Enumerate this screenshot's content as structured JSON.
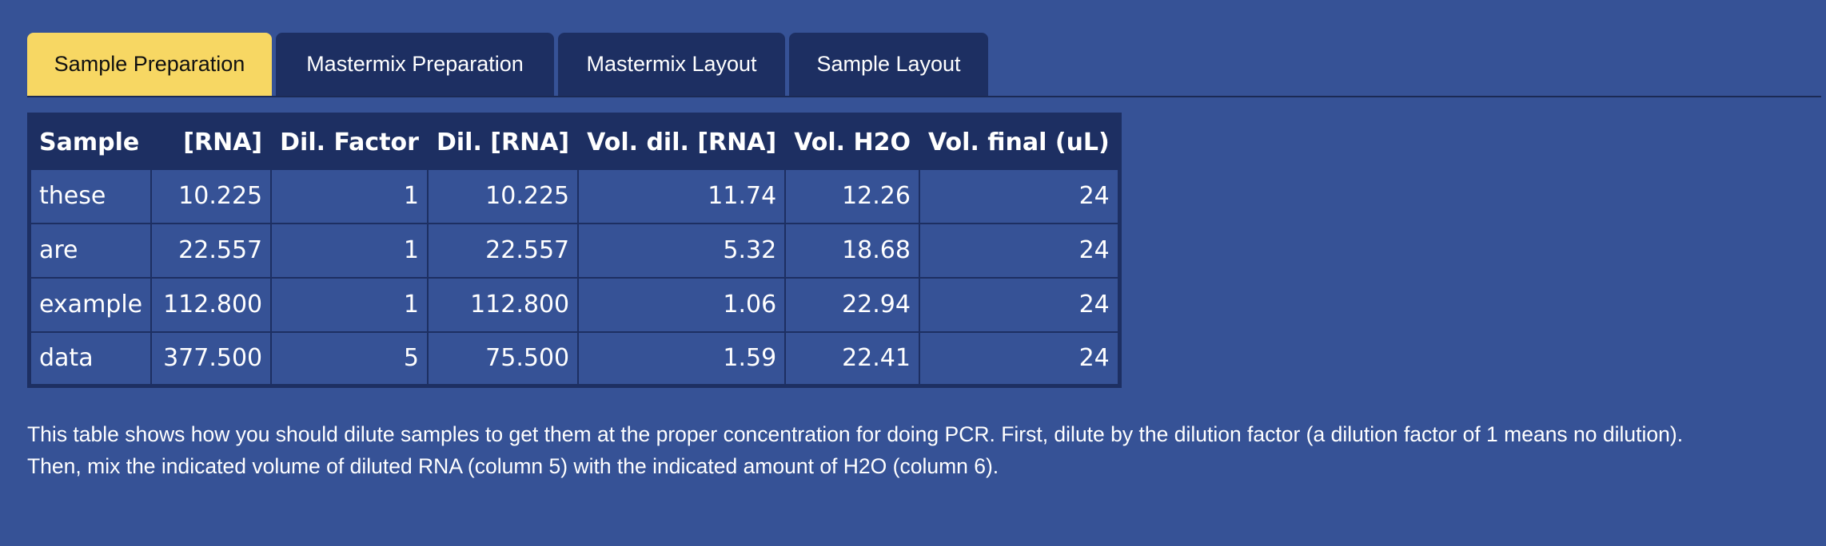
{
  "tabs": [
    {
      "label": "Sample Preparation",
      "active": true
    },
    {
      "label": "Mastermix Preparation",
      "active": false
    },
    {
      "label": "Mastermix Layout",
      "active": false
    },
    {
      "label": "Sample Layout",
      "active": false
    }
  ],
  "table": {
    "headers": [
      "Sample",
      "[RNA]",
      "Dil. Factor",
      "Dil. [RNA]",
      "Vol. dil. [RNA]",
      "Vol. H2O",
      "Vol. final (uL)"
    ],
    "rows": [
      [
        "these",
        "10.225",
        "1",
        "10.225",
        "11.74",
        "12.26",
        "24"
      ],
      [
        "are",
        "22.557",
        "1",
        "22.557",
        "5.32",
        "18.68",
        "24"
      ],
      [
        "example",
        "112.800",
        "1",
        "112.800",
        "1.06",
        "22.94",
        "24"
      ],
      [
        "data",
        "377.500",
        "5",
        "75.500",
        "1.59",
        "22.41",
        "24"
      ]
    ]
  },
  "description": {
    "line1": "This table shows how you should dilute samples to get them at the proper concentration for doing PCR. First, dilute by the dilution factor (a dilution factor of 1 means no dilution).",
    "line2": "Then, mix the indicated volume of diluted RNA (column 5) with the indicated amount of H2O (column 6)."
  },
  "colors": {
    "background": "#365296",
    "tab_active": "#f7d763",
    "tab_inactive": "#1d2f62",
    "table_header": "#1d2f62"
  }
}
